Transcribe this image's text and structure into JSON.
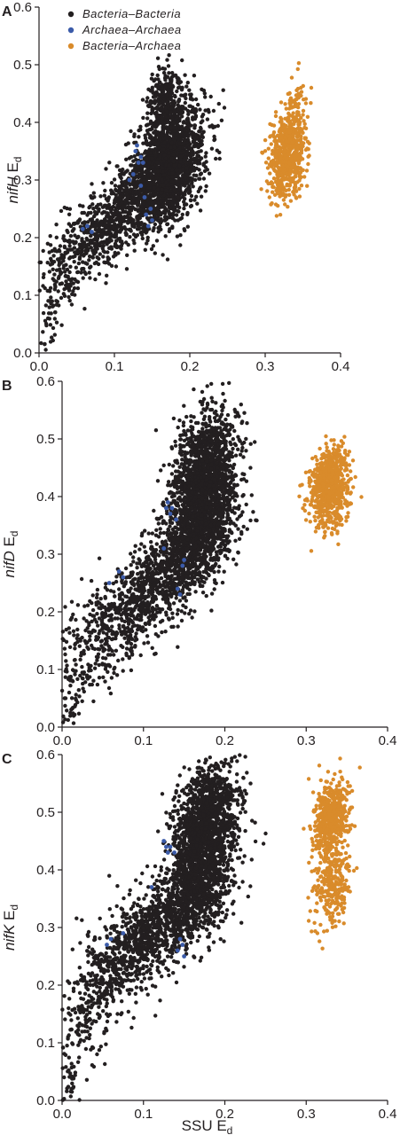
{
  "legend": [
    {
      "name": "Bacteria–Bacteria",
      "color": "#231f20"
    },
    {
      "name": "Archaea–Archaea",
      "color": "#3b5ba9"
    },
    {
      "name": "Bacteria–Archaea",
      "color": "#d98b2b"
    }
  ],
  "chart_data": [
    {
      "type": "scatter",
      "panel": "A",
      "ylabel_gene": "nifH",
      "ylabel_suffix": " E",
      "ylabel_sub": "d",
      "xlabel": "",
      "xlim": [
        0,
        0.4
      ],
      "ylim": [
        0,
        0.6
      ],
      "xticks": [
        "0.0",
        "0.1",
        "0.2",
        "0.3",
        "0.4"
      ],
      "yticks": [
        "0.0",
        "0.1",
        "0.2",
        "0.3",
        "0.4",
        "0.5",
        "0.6"
      ],
      "series": [
        {
          "name": "Bacteria–Bacteria",
          "clusters": [
            {
              "x": 0.175,
              "y": 0.33,
              "sx": 0.022,
              "sy": 0.05,
              "n": 1700
            },
            {
              "x": 0.165,
              "y": 0.44,
              "sx": 0.012,
              "sy": 0.03,
              "n": 220
            },
            {
              "x": 0.13,
              "y": 0.27,
              "sx": 0.028,
              "sy": 0.035,
              "n": 520
            },
            {
              "x": 0.085,
              "y": 0.22,
              "sx": 0.025,
              "sy": 0.035,
              "n": 380
            },
            {
              "x": 0.035,
              "y": 0.15,
              "sx": 0.018,
              "sy": 0.04,
              "n": 160
            },
            {
              "x": 0.01,
              "y": 0.03,
              "sx": 0.008,
              "sy": 0.04,
              "n": 40
            }
          ]
        },
        {
          "name": "Archaea–Archaea",
          "points": [
            [
              0.13,
              0.36
            ],
            [
              0.128,
              0.35
            ],
            [
              0.135,
              0.34
            ],
            [
              0.132,
              0.33
            ],
            [
              0.138,
              0.33
            ],
            [
              0.142,
              0.24
            ],
            [
              0.145,
              0.22
            ],
            [
              0.15,
              0.23
            ],
            [
              0.148,
              0.25
            ],
            [
              0.058,
              0.215
            ],
            [
              0.064,
              0.22
            ],
            [
              0.07,
              0.21
            ],
            [
              0.12,
              0.3
            ],
            [
              0.125,
              0.31
            ],
            [
              0.135,
              0.29
            ],
            [
              0.14,
              0.27
            ]
          ]
        },
        {
          "name": "Bacteria–Archaea",
          "clusters": [
            {
              "x": 0.33,
              "y": 0.345,
              "sx": 0.012,
              "sy": 0.035,
              "n": 650
            },
            {
              "x": 0.34,
              "y": 0.44,
              "sx": 0.008,
              "sy": 0.025,
              "n": 40
            }
          ]
        }
      ]
    },
    {
      "type": "scatter",
      "panel": "B",
      "ylabel_gene": "nifD",
      "ylabel_suffix": " E",
      "ylabel_sub": "d",
      "xlabel": "",
      "xlim": [
        0,
        0.4
      ],
      "ylim": [
        0,
        0.6
      ],
      "xticks": [
        "0.0",
        "0.1",
        "0.2",
        "0.3",
        "0.4"
      ],
      "yticks": [
        "0.0",
        "0.1",
        "0.2",
        "0.3",
        "0.4",
        "0.5",
        "0.6"
      ],
      "series": [
        {
          "name": "Bacteria–Bacteria",
          "clusters": [
            {
              "x": 0.175,
              "y": 0.44,
              "sx": 0.02,
              "sy": 0.05,
              "n": 1300
            },
            {
              "x": 0.17,
              "y": 0.34,
              "sx": 0.022,
              "sy": 0.045,
              "n": 900
            },
            {
              "x": 0.13,
              "y": 0.27,
              "sx": 0.03,
              "sy": 0.04,
              "n": 600
            },
            {
              "x": 0.08,
              "y": 0.2,
              "sx": 0.028,
              "sy": 0.04,
              "n": 380
            },
            {
              "x": 0.03,
              "y": 0.13,
              "sx": 0.02,
              "sy": 0.045,
              "n": 160
            },
            {
              "x": 0.008,
              "y": 0.02,
              "sx": 0.006,
              "sy": 0.02,
              "n": 30
            }
          ]
        },
        {
          "name": "Archaea–Archaea",
          "points": [
            [
              0.13,
              0.39
            ],
            [
              0.128,
              0.38
            ],
            [
              0.135,
              0.38
            ],
            [
              0.133,
              0.37
            ],
            [
              0.14,
              0.36
            ],
            [
              0.15,
              0.29
            ],
            [
              0.148,
              0.28
            ],
            [
              0.142,
              0.24
            ],
            [
              0.145,
              0.23
            ],
            [
              0.07,
              0.27
            ],
            [
              0.075,
              0.26
            ],
            [
              0.058,
              0.25
            ],
            [
              0.125,
              0.31
            ]
          ]
        },
        {
          "name": "Bacteria–Archaea",
          "clusters": [
            {
              "x": 0.328,
              "y": 0.42,
              "sx": 0.012,
              "sy": 0.03,
              "n": 650
            },
            {
              "x": 0.335,
              "y": 0.36,
              "sx": 0.008,
              "sy": 0.02,
              "n": 50
            }
          ]
        }
      ]
    },
    {
      "type": "scatter",
      "panel": "C",
      "ylabel_gene": "nifK",
      "ylabel_suffix": " E",
      "ylabel_sub": "d",
      "xlabel": "SSU E",
      "xlabel_sub": "d",
      "xlim": [
        0,
        0.4
      ],
      "ylim": [
        0,
        0.6
      ],
      "xticks": [
        "0.0",
        "0.1",
        "0.2",
        "0.3",
        "0.4"
      ],
      "yticks": [
        "0.0",
        "0.1",
        "0.2",
        "0.3",
        "0.4",
        "0.5",
        "0.6"
      ],
      "series": [
        {
          "name": "Bacteria–Bacteria",
          "clusters": [
            {
              "x": 0.175,
              "y": 0.48,
              "sx": 0.02,
              "sy": 0.05,
              "n": 1300
            },
            {
              "x": 0.165,
              "y": 0.37,
              "sx": 0.022,
              "sy": 0.045,
              "n": 900
            },
            {
              "x": 0.12,
              "y": 0.3,
              "sx": 0.03,
              "sy": 0.04,
              "n": 600
            },
            {
              "x": 0.07,
              "y": 0.24,
              "sx": 0.025,
              "sy": 0.04,
              "n": 380
            },
            {
              "x": 0.03,
              "y": 0.15,
              "sx": 0.018,
              "sy": 0.045,
              "n": 160
            },
            {
              "x": 0.008,
              "y": 0.02,
              "sx": 0.006,
              "sy": 0.02,
              "n": 25
            }
          ]
        },
        {
          "name": "Archaea–Archaea",
          "points": [
            [
              0.125,
              0.45
            ],
            [
              0.128,
              0.44
            ],
            [
              0.133,
              0.44
            ],
            [
              0.13,
              0.43
            ],
            [
              0.138,
              0.43
            ],
            [
              0.145,
              0.28
            ],
            [
              0.148,
              0.27
            ],
            [
              0.142,
              0.26
            ],
            [
              0.15,
              0.25
            ],
            [
              0.075,
              0.29
            ],
            [
              0.055,
              0.27
            ],
            [
              0.06,
              0.28
            ],
            [
              0.11,
              0.37
            ]
          ]
        },
        {
          "name": "Bacteria–Archaea",
          "clusters": [
            {
              "x": 0.33,
              "y": 0.49,
              "sx": 0.011,
              "sy": 0.03,
              "n": 500
            },
            {
              "x": 0.332,
              "y": 0.38,
              "sx": 0.012,
              "sy": 0.035,
              "n": 280
            }
          ]
        }
      ]
    }
  ]
}
